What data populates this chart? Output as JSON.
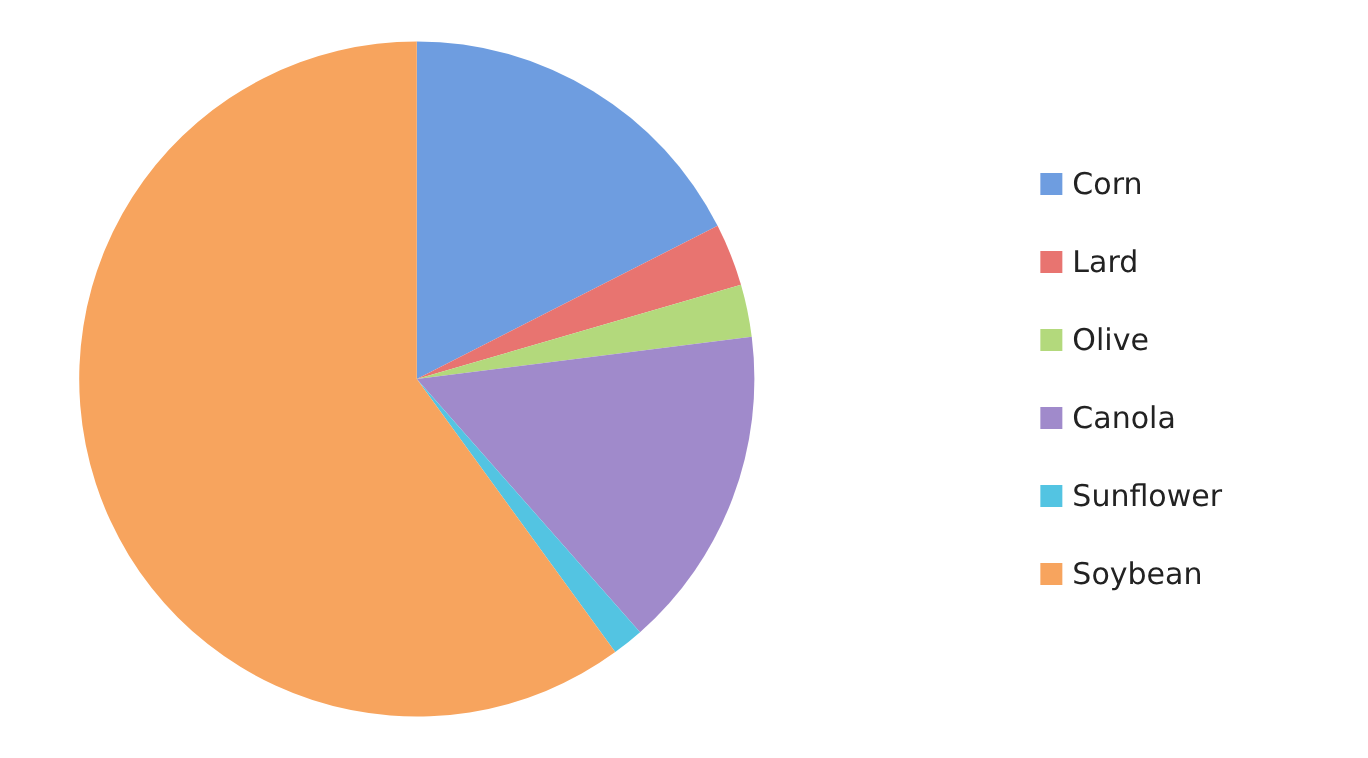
{
  "chart_data": {
    "type": "pie",
    "categories": [
      "Corn",
      "Lard",
      "Olive",
      "Canola",
      "Sunflower",
      "Soybean"
    ],
    "values": [
      17.5,
      3,
      2.5,
      15.5,
      1.5,
      60
    ],
    "colors": [
      "#6e9de0",
      "#e87470",
      "#b3d97c",
      "#a08acb",
      "#53c4e2",
      "#f7a45e"
    ],
    "legend": "right"
  }
}
